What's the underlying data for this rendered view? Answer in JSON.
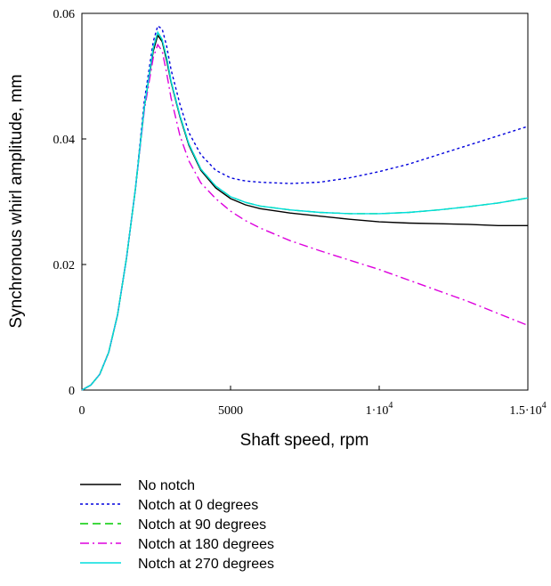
{
  "chart_data": {
    "type": "line",
    "title": "",
    "xlabel": "Shaft speed, rpm",
    "ylabel": "Synchronous whirl amplitude, mm",
    "xlim": [
      0,
      15000
    ],
    "ylim": [
      0,
      0.06
    ],
    "grid": false,
    "legend_position": "bottom",
    "x_ticks": [
      {
        "value": 0,
        "label": "0"
      },
      {
        "value": 5000,
        "label": "5000"
      },
      {
        "value": 10000,
        "label": "1·10"
      },
      {
        "value": 15000,
        "label": "1.5·10"
      }
    ],
    "x_tick_exponent": "4",
    "y_ticks": [
      {
        "value": 0,
        "label": "0"
      },
      {
        "value": 0.02,
        "label": "0.02"
      },
      {
        "value": 0.04,
        "label": "0.04"
      },
      {
        "value": 0.06,
        "label": "0.06"
      }
    ],
    "series": [
      {
        "name": "No notch",
        "color": "#000000",
        "dash": "solid",
        "x": [
          0,
          300,
          600,
          900,
          1200,
          1500,
          1800,
          2100,
          2400,
          2550,
          2700,
          2850,
          3000,
          3300,
          3600,
          4000,
          4500,
          5000,
          5500,
          6000,
          7000,
          8000,
          9000,
          10000,
          11000,
          12000,
          13000,
          14000,
          15000
        ],
        "y": [
          0,
          0.0008,
          0.0025,
          0.006,
          0.012,
          0.021,
          0.032,
          0.045,
          0.054,
          0.0565,
          0.0555,
          0.0525,
          0.049,
          0.0435,
          0.039,
          0.035,
          0.0322,
          0.0305,
          0.0295,
          0.0289,
          0.0282,
          0.0277,
          0.0272,
          0.0268,
          0.0266,
          0.0265,
          0.0264,
          0.0262,
          0.0262
        ]
      },
      {
        "name": "Notch at 0 degrees",
        "color": "#0000dd",
        "dash": "dotted",
        "x": [
          0,
          300,
          600,
          900,
          1200,
          1500,
          1800,
          2100,
          2400,
          2550,
          2700,
          2850,
          3000,
          3300,
          3600,
          4000,
          4500,
          5000,
          5500,
          6000,
          7000,
          8000,
          9000,
          10000,
          11000,
          12000,
          13000,
          14000,
          15000
        ],
        "y": [
          0,
          0.0008,
          0.0025,
          0.006,
          0.012,
          0.021,
          0.032,
          0.046,
          0.0555,
          0.058,
          0.0575,
          0.0548,
          0.051,
          0.0455,
          0.041,
          0.0375,
          0.035,
          0.0338,
          0.0333,
          0.0331,
          0.0329,
          0.0331,
          0.0338,
          0.0348,
          0.036,
          0.0375,
          0.039,
          0.0405,
          0.042
        ]
      },
      {
        "name": "Notch at 90 degrees",
        "color": "#00cc00",
        "dash": "dashed",
        "x": [
          0,
          300,
          600,
          900,
          1200,
          1500,
          1800,
          2100,
          2400,
          2550,
          2700,
          2850,
          3000,
          3300,
          3600,
          4000,
          4500,
          5000,
          5500,
          6000,
          7000,
          8000,
          9000,
          10000,
          11000,
          12000,
          13000,
          14000,
          15000
        ],
        "y": [
          0,
          0.0008,
          0.0025,
          0.006,
          0.012,
          0.021,
          0.032,
          0.045,
          0.0545,
          0.057,
          0.0558,
          0.053,
          0.0492,
          0.0437,
          0.0392,
          0.0352,
          0.0325,
          0.0308,
          0.0299,
          0.0293,
          0.0287,
          0.0283,
          0.0281,
          0.0281,
          0.0283,
          0.0287,
          0.0292,
          0.0298,
          0.0306
        ]
      },
      {
        "name": "Notch at 180 degrees",
        "color": "#dd00dd",
        "dash": "dashdot",
        "x": [
          0,
          300,
          600,
          900,
          1200,
          1500,
          1800,
          2100,
          2400,
          2550,
          2700,
          2850,
          3000,
          3300,
          3600,
          4000,
          4500,
          5000,
          5500,
          6000,
          7000,
          8000,
          9000,
          10000,
          11000,
          12000,
          13000,
          14000,
          15000
        ],
        "y": [
          0,
          0.0008,
          0.0025,
          0.006,
          0.012,
          0.021,
          0.032,
          0.0445,
          0.053,
          0.055,
          0.054,
          0.0505,
          0.0465,
          0.0405,
          0.0365,
          0.033,
          0.0305,
          0.0285,
          0.027,
          0.0258,
          0.0238,
          0.0222,
          0.0207,
          0.0192,
          0.0175,
          0.0158,
          0.0141,
          0.0122,
          0.0103
        ]
      },
      {
        "name": "Notch at 270 degrees",
        "color": "#00dddd",
        "dash": "solid",
        "x": [
          0,
          300,
          600,
          900,
          1200,
          1500,
          1800,
          2100,
          2400,
          2550,
          2700,
          2850,
          3000,
          3300,
          3600,
          4000,
          4500,
          5000,
          5500,
          6000,
          7000,
          8000,
          9000,
          10000,
          11000,
          12000,
          13000,
          14000,
          15000
        ],
        "y": [
          0,
          0.0008,
          0.0025,
          0.006,
          0.012,
          0.021,
          0.032,
          0.045,
          0.0545,
          0.057,
          0.0558,
          0.053,
          0.0492,
          0.0437,
          0.0392,
          0.0352,
          0.0325,
          0.0308,
          0.0299,
          0.0293,
          0.0287,
          0.0283,
          0.0281,
          0.0281,
          0.0283,
          0.0287,
          0.0292,
          0.0298,
          0.0306
        ]
      }
    ]
  }
}
